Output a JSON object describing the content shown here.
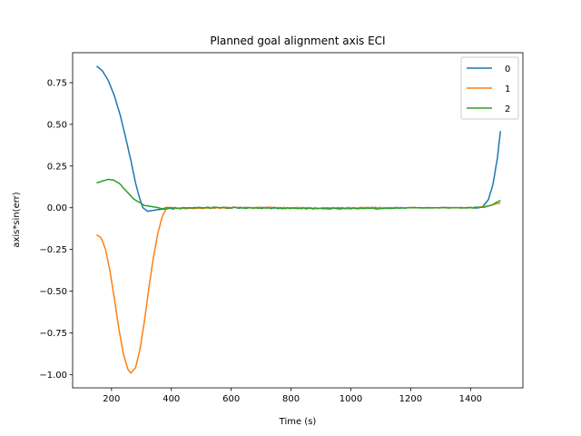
{
  "chart_data": {
    "type": "line",
    "title": "Planned goal alignment axis ECI",
    "xlabel": "Time (s)",
    "ylabel": "axis*sin(err)",
    "xlim": [
      70,
      1575
    ],
    "ylim": [
      -1.08,
      0.93
    ],
    "xticks": [
      200,
      400,
      600,
      800,
      1000,
      1200,
      1400
    ],
    "yticks": [
      -1.0,
      -0.75,
      -0.5,
      -0.25,
      0.0,
      0.25,
      0.5,
      0.75
    ],
    "grid": false,
    "legend_position": "top-right",
    "series": [
      {
        "name": "0",
        "color": "#1f77b4",
        "points": [
          [
            150,
            0.85
          ],
          [
            170,
            0.82
          ],
          [
            190,
            0.76
          ],
          [
            210,
            0.67
          ],
          [
            230,
            0.55
          ],
          [
            250,
            0.4
          ],
          [
            265,
            0.28
          ],
          [
            280,
            0.15
          ],
          [
            295,
            0.05
          ],
          [
            305,
            0.0
          ],
          [
            320,
            -0.02
          ],
          [
            340,
            -0.015
          ],
          [
            360,
            -0.01
          ],
          [
            400,
            -0.005
          ],
          [
            500,
            0.0
          ],
          [
            700,
            0.0
          ],
          [
            900,
            -0.005
          ],
          [
            1100,
            0.0
          ],
          [
            1300,
            0.0
          ],
          [
            1420,
            0.0
          ],
          [
            1440,
            0.005
          ],
          [
            1460,
            0.05
          ],
          [
            1475,
            0.14
          ],
          [
            1490,
            0.3
          ],
          [
            1500,
            0.46
          ]
        ]
      },
      {
        "name": "1",
        "color": "#ff7f0e",
        "points": [
          [
            150,
            -0.16
          ],
          [
            165,
            -0.18
          ],
          [
            180,
            -0.25
          ],
          [
            195,
            -0.38
          ],
          [
            210,
            -0.55
          ],
          [
            225,
            -0.73
          ],
          [
            240,
            -0.88
          ],
          [
            255,
            -0.97
          ],
          [
            265,
            -0.99
          ],
          [
            280,
            -0.96
          ],
          [
            295,
            -0.85
          ],
          [
            310,
            -0.68
          ],
          [
            325,
            -0.48
          ],
          [
            340,
            -0.3
          ],
          [
            355,
            -0.15
          ],
          [
            370,
            -0.05
          ],
          [
            385,
            0.0
          ],
          [
            400,
            0.0
          ],
          [
            450,
            -0.005
          ],
          [
            600,
            0.0
          ],
          [
            800,
            0.0
          ],
          [
            1000,
            0.0
          ],
          [
            1200,
            0.0
          ],
          [
            1400,
            0.0
          ],
          [
            1440,
            0.005
          ],
          [
            1470,
            0.015
          ],
          [
            1500,
            0.03
          ]
        ]
      },
      {
        "name": "2",
        "color": "#2ca02c",
        "points": [
          [
            150,
            0.15
          ],
          [
            170,
            0.16
          ],
          [
            190,
            0.17
          ],
          [
            210,
            0.165
          ],
          [
            230,
            0.14
          ],
          [
            250,
            0.1
          ],
          [
            270,
            0.06
          ],
          [
            290,
            0.035
          ],
          [
            310,
            0.015
          ],
          [
            340,
            0.005
          ],
          [
            370,
            -0.005
          ],
          [
            400,
            0.0
          ],
          [
            600,
            0.0
          ],
          [
            800,
            -0.003
          ],
          [
            1000,
            -0.005
          ],
          [
            1100,
            -0.005
          ],
          [
            1200,
            0.0
          ],
          [
            1400,
            0.0
          ],
          [
            1450,
            0.005
          ],
          [
            1475,
            0.02
          ],
          [
            1500,
            0.045
          ]
        ]
      }
    ]
  }
}
